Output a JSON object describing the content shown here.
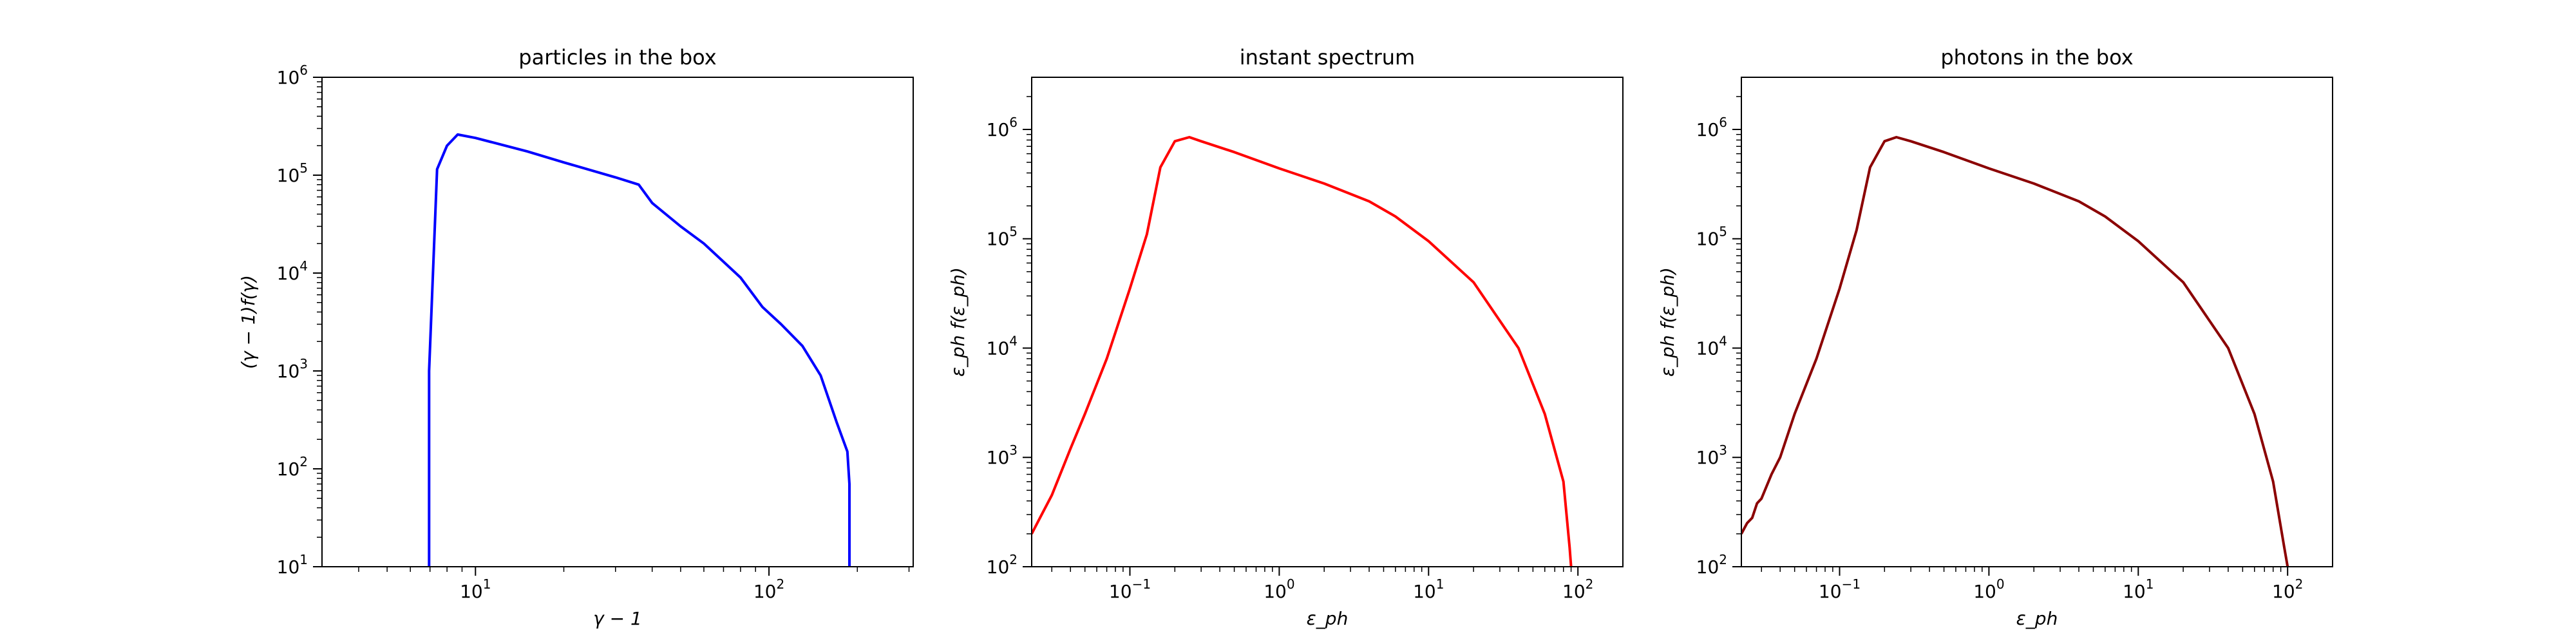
{
  "chart_data": [
    {
      "type": "line",
      "title": "particles in the box",
      "xlabel": "γ − 1",
      "ylabel": "(γ − 1)f(γ)",
      "xscale": "log",
      "yscale": "log",
      "xlim": [
        3,
        310
      ],
      "ylim": [
        10,
        1000000
      ],
      "grid": false,
      "xticks": [
        {
          "value": 10,
          "exp": "1"
        },
        {
          "value": 100,
          "exp": "2"
        }
      ],
      "yticks": [
        {
          "value": 10,
          "exp": "1"
        },
        {
          "value": 100,
          "exp": "2"
        },
        {
          "value": 1000,
          "exp": "3"
        },
        {
          "value": 10000,
          "exp": "4"
        },
        {
          "value": 100000,
          "exp": "5"
        },
        {
          "value": 1000000,
          "exp": "6"
        }
      ],
      "series": [
        {
          "color": "#0000ff",
          "x": [
            6.95,
            6.95,
            7.4,
            8.0,
            8.7,
            10,
            15,
            20,
            30,
            36,
            40,
            50,
            60,
            80,
            95,
            110,
            130,
            150,
            170,
            185,
            188,
            188
          ],
          "y": [
            10,
            1000,
            115000,
            200000,
            260000,
            240000,
            175000,
            135000,
            95000,
            80000,
            52000,
            30000,
            20000,
            9000,
            4500,
            3000,
            1800,
            900,
            300,
            150,
            70,
            10
          ]
        }
      ]
    },
    {
      "type": "line",
      "title": "instant spectrum",
      "xlabel": "ε_ph",
      "ylabel": "ε_ph f(ε_ph)",
      "xscale": "log",
      "yscale": "log",
      "xlim": [
        0.022,
        200
      ],
      "ylim": [
        100,
        3000000
      ],
      "grid": false,
      "xticks": [
        {
          "value": 0.1,
          "exp": "−1"
        },
        {
          "value": 1,
          "exp": "0"
        },
        {
          "value": 10,
          "exp": "1"
        },
        {
          "value": 100,
          "exp": "2"
        }
      ],
      "yticks": [
        {
          "value": 100,
          "exp": "2"
        },
        {
          "value": 1000,
          "exp": "3"
        },
        {
          "value": 10000,
          "exp": "4"
        },
        {
          "value": 100000,
          "exp": "5"
        },
        {
          "value": 1000000,
          "exp": "6"
        }
      ],
      "series": [
        {
          "color": "#ff0000",
          "x": [
            0.022,
            0.025,
            0.03,
            0.04,
            0.05,
            0.07,
            0.1,
            0.13,
            0.16,
            0.2,
            0.25,
            0.3,
            0.5,
            1,
            2,
            4,
            6,
            10,
            20,
            40,
            60,
            80,
            88,
            90
          ],
          "y": [
            200,
            280,
            450,
            1200,
            2500,
            8000,
            35000,
            110000,
            450000,
            780000,
            850000,
            780000,
            620000,
            440000,
            320000,
            220000,
            160000,
            95000,
            40000,
            10000,
            2500,
            600,
            150,
            100
          ]
        }
      ]
    },
    {
      "type": "line",
      "title": "photons in the box",
      "xlabel": "ε_ph",
      "ylabel": "ε_ph f(ε_ph)",
      "xscale": "log",
      "yscale": "log",
      "xlim": [
        0.022,
        200
      ],
      "ylim": [
        100,
        3000000
      ],
      "grid": false,
      "xticks": [
        {
          "value": 0.1,
          "exp": "−1"
        },
        {
          "value": 1,
          "exp": "0"
        },
        {
          "value": 10,
          "exp": "1"
        },
        {
          "value": 100,
          "exp": "2"
        }
      ],
      "yticks": [
        {
          "value": 100,
          "exp": "2"
        },
        {
          "value": 1000,
          "exp": "3"
        },
        {
          "value": 10000,
          "exp": "4"
        },
        {
          "value": 100000,
          "exp": "5"
        },
        {
          "value": 1000000,
          "exp": "6"
        }
      ],
      "series": [
        {
          "color": "#8b0000",
          "x": [
            0.022,
            0.024,
            0.026,
            0.028,
            0.03,
            0.035,
            0.04,
            0.05,
            0.07,
            0.1,
            0.13,
            0.16,
            0.2,
            0.24,
            0.3,
            0.5,
            1,
            2,
            4,
            6,
            10,
            20,
            40,
            60,
            80,
            95,
            100
          ],
          "y": [
            200,
            250,
            280,
            380,
            420,
            700,
            1000,
            2500,
            8000,
            35000,
            120000,
            450000,
            780000,
            850000,
            780000,
            620000,
            440000,
            320000,
            220000,
            160000,
            95000,
            40000,
            10000,
            2500,
            600,
            150,
            100
          ]
        }
      ]
    }
  ]
}
